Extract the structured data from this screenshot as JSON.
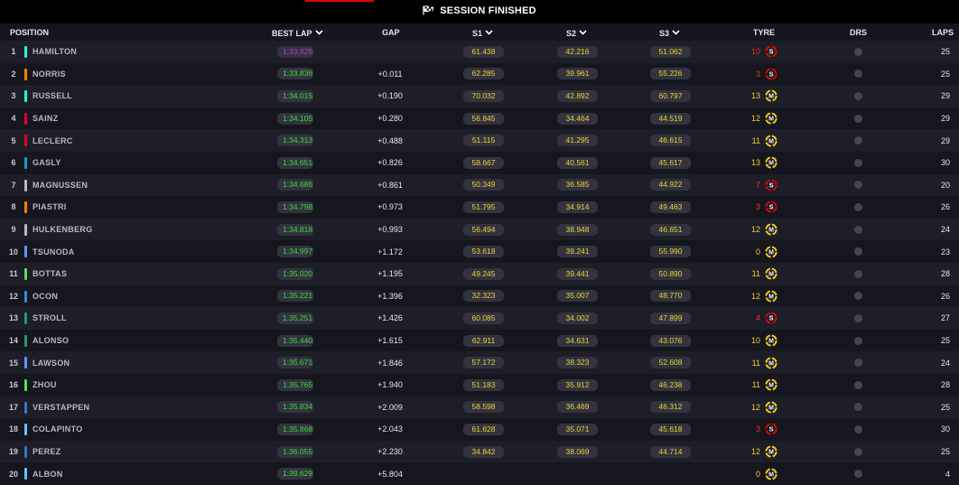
{
  "session": {
    "title": "SESSION FINISHED"
  },
  "columns": {
    "position": "POSITION",
    "best_lap": "BEST LAP",
    "gap": "GAP",
    "s1": "S1",
    "s2": "S2",
    "s3": "S3",
    "tyre": "TYRE",
    "drs": "DRS",
    "laps": "LAPS"
  },
  "colors": {
    "purple": "#b138dd",
    "green": "#3ad93a",
    "yellow": "#e8d234",
    "soft": "#e10600",
    "medium": "#f3d11c",
    "tyre_age_soft": "#e1362e",
    "tyre_age_medium": "#f0cf2a"
  },
  "rows": [
    {
      "pos": "1",
      "driver": "HAMILTON",
      "team_color": "#27f4d2",
      "best": "1:33.825",
      "best_color": "purple",
      "gap": "",
      "s1": "61.438",
      "s1_color": "yellow",
      "s2": "42.216",
      "s2_color": "yellow",
      "s3": "51.062",
      "s3_color": "yellow",
      "tyre_age": "10",
      "tyre": "S",
      "laps": "25"
    },
    {
      "pos": "2",
      "driver": "NORRIS",
      "team_color": "#ff8000",
      "best": "1:33.836",
      "best_color": "green",
      "gap": "+0.011",
      "s1": "62.285",
      "s1_color": "yellow",
      "s2": "39.961",
      "s2_color": "yellow",
      "s3": "55.226",
      "s3_color": "yellow",
      "tyre_age": "3",
      "tyre": "S",
      "laps": "25"
    },
    {
      "pos": "3",
      "driver": "RUSSELL",
      "team_color": "#27f4d2",
      "best": "1:34.015",
      "best_color": "green",
      "gap": "+0.190",
      "s1": "70.032",
      "s1_color": "yellow",
      "s2": "42.892",
      "s2_color": "yellow",
      "s3": "60.797",
      "s3_color": "yellow",
      "tyre_age": "13",
      "tyre": "M",
      "laps": "29"
    },
    {
      "pos": "4",
      "driver": "SAINZ",
      "team_color": "#e8002d",
      "best": "1:34.105",
      "best_color": "green",
      "gap": "+0.280",
      "s1": "56.845",
      "s1_color": "yellow",
      "s2": "34.464",
      "s2_color": "yellow",
      "s3": "44.519",
      "s3_color": "yellow",
      "tyre_age": "12",
      "tyre": "M",
      "laps": "29"
    },
    {
      "pos": "5",
      "driver": "LECLERC",
      "team_color": "#e8002d",
      "best": "1:34.313",
      "best_color": "green",
      "gap": "+0.488",
      "s1": "51.115",
      "s1_color": "yellow",
      "s2": "41.295",
      "s2_color": "yellow",
      "s3": "46.615",
      "s3_color": "yellow",
      "tyre_age": "11",
      "tyre": "M",
      "laps": "29"
    },
    {
      "pos": "6",
      "driver": "GASLY",
      "team_color": "#2293d1",
      "best": "1:34.651",
      "best_color": "green",
      "gap": "+0.826",
      "s1": "58.667",
      "s1_color": "yellow",
      "s2": "40.561",
      "s2_color": "yellow",
      "s3": "45.617",
      "s3_color": "yellow",
      "tyre_age": "13",
      "tyre": "M",
      "laps": "30"
    },
    {
      "pos": "7",
      "driver": "MAGNUSSEN",
      "team_color": "#b6babd",
      "best": "1:34.686",
      "best_color": "green",
      "gap": "+0.861",
      "s1": "50.349",
      "s1_color": "yellow",
      "s2": "36.585",
      "s2_color": "yellow",
      "s3": "44.922",
      "s3_color": "yellow",
      "tyre_age": "7",
      "tyre": "S",
      "laps": "20"
    },
    {
      "pos": "8",
      "driver": "PIASTRI",
      "team_color": "#ff8000",
      "best": "1:34.798",
      "best_color": "green",
      "gap": "+0.973",
      "s1": "51.795",
      "s1_color": "yellow",
      "s2": "34.914",
      "s2_color": "yellow",
      "s3": "49.463",
      "s3_color": "yellow",
      "tyre_age": "3",
      "tyre": "S",
      "laps": "26"
    },
    {
      "pos": "9",
      "driver": "HULKENBERG",
      "team_color": "#b6babd",
      "best": "1:34.818",
      "best_color": "green",
      "gap": "+0.993",
      "s1": "56.494",
      "s1_color": "yellow",
      "s2": "38.948",
      "s2_color": "yellow",
      "s3": "46.651",
      "s3_color": "yellow",
      "tyre_age": "12",
      "tyre": "M",
      "laps": "24"
    },
    {
      "pos": "10",
      "driver": "TSUNODA",
      "team_color": "#6692ff",
      "best": "1:34.997",
      "best_color": "green",
      "gap": "+1.172",
      "s1": "53.618",
      "s1_color": "yellow",
      "s2": "39.241",
      "s2_color": "yellow",
      "s3": "55.990",
      "s3_color": "yellow",
      "tyre_age": "0",
      "tyre": "M",
      "laps": "23"
    },
    {
      "pos": "11",
      "driver": "BOTTAS",
      "team_color": "#52e252",
      "best": "1:35.020",
      "best_color": "green",
      "gap": "+1.195",
      "s1": "49.245",
      "s1_color": "yellow",
      "s2": "39.441",
      "s2_color": "yellow",
      "s3": "50.890",
      "s3_color": "yellow",
      "tyre_age": "11",
      "tyre": "M",
      "laps": "28"
    },
    {
      "pos": "12",
      "driver": "OCON",
      "team_color": "#2293d1",
      "best": "1:35.221",
      "best_color": "green",
      "gap": "+1.396",
      "s1": "32.323",
      "s1_color": "yellow",
      "s2": "35.007",
      "s2_color": "yellow",
      "s3": "48.770",
      "s3_color": "yellow",
      "tyre_age": "12",
      "tyre": "M",
      "laps": "26"
    },
    {
      "pos": "13",
      "driver": "STROLL",
      "team_color": "#229971",
      "best": "1:35.251",
      "best_color": "green",
      "gap": "+1.426",
      "s1": "60.085",
      "s1_color": "yellow",
      "s2": "34.002",
      "s2_color": "yellow",
      "s3": "47.899",
      "s3_color": "yellow",
      "tyre_age": "4",
      "tyre": "S",
      "laps": "27"
    },
    {
      "pos": "14",
      "driver": "ALONSO",
      "team_color": "#229971",
      "best": "1:35.440",
      "best_color": "green",
      "gap": "+1.615",
      "s1": "62.911",
      "s1_color": "yellow",
      "s2": "34.631",
      "s2_color": "yellow",
      "s3": "43.076",
      "s3_color": "yellow",
      "tyre_age": "10",
      "tyre": "M",
      "laps": "25"
    },
    {
      "pos": "15",
      "driver": "LAWSON",
      "team_color": "#6692ff",
      "best": "1:35.671",
      "best_color": "green",
      "gap": "+1.846",
      "s1": "57.172",
      "s1_color": "yellow",
      "s2": "38.323",
      "s2_color": "yellow",
      "s3": "52.608",
      "s3_color": "yellow",
      "tyre_age": "11",
      "tyre": "M",
      "laps": "24"
    },
    {
      "pos": "16",
      "driver": "ZHOU",
      "team_color": "#52e252",
      "best": "1:35.765",
      "best_color": "green",
      "gap": "+1.940",
      "s1": "51.183",
      "s1_color": "yellow",
      "s2": "35.912",
      "s2_color": "yellow",
      "s3": "46.238",
      "s3_color": "yellow",
      "tyre_age": "11",
      "tyre": "M",
      "laps": "28"
    },
    {
      "pos": "17",
      "driver": "VERSTAPPEN",
      "team_color": "#3671c6",
      "best": "1:35.834",
      "best_color": "green",
      "gap": "+2.009",
      "s1": "58.598",
      "s1_color": "yellow",
      "s2": "36.469",
      "s2_color": "yellow",
      "s3": "46.312",
      "s3_color": "yellow",
      "tyre_age": "12",
      "tyre": "M",
      "laps": "25"
    },
    {
      "pos": "18",
      "driver": "COLAPINTO",
      "team_color": "#64c4ff",
      "best": "1:35.868",
      "best_color": "green",
      "gap": "+2.043",
      "s1": "61.628",
      "s1_color": "yellow",
      "s2": "35.071",
      "s2_color": "yellow",
      "s3": "45.618",
      "s3_color": "yellow",
      "tyre_age": "3",
      "tyre": "S",
      "laps": "30"
    },
    {
      "pos": "19",
      "driver": "PEREZ",
      "team_color": "#3671c6",
      "best": "1:36.055",
      "best_color": "green",
      "gap": "+2.230",
      "s1": "34.842",
      "s1_color": "yellow",
      "s2": "38.069",
      "s2_color": "yellow",
      "s3": "44.714",
      "s3_color": "yellow",
      "tyre_age": "12",
      "tyre": "M",
      "laps": "25"
    },
    {
      "pos": "20",
      "driver": "ALBON",
      "team_color": "#64c4ff",
      "best": "1:39.629",
      "best_color": "green",
      "gap": "+5.804",
      "s1": "",
      "s1_color": "yellow",
      "s2": "",
      "s2_color": "yellow",
      "s3": "",
      "s3_color": "yellow",
      "tyre_age": "0",
      "tyre": "M",
      "laps": "4"
    }
  ]
}
